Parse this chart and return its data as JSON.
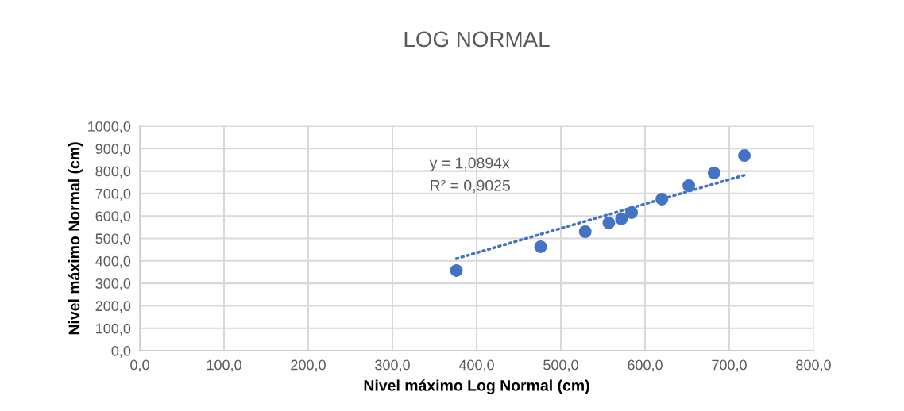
{
  "chart_data": {
    "type": "scatter",
    "title": "LOG NORMAL",
    "xlabel": "Nivel máximo Log Normal (cm)",
    "ylabel": "Nivel máximo Normal (cm)",
    "series": [
      {
        "color": "#4472c4",
        "x": [
          376,
          476,
          529,
          557,
          572,
          584,
          620,
          652,
          682,
          718
        ],
        "values": [
          357,
          463,
          530,
          569,
          587,
          615,
          675,
          735,
          792,
          869
        ],
        "marker": "circle"
      },
      {
        "type": "line",
        "color": "#4472c4",
        "x": [
          376,
          718
        ],
        "values": [
          410,
          782
        ],
        "line_style": "dotted",
        "marker": "none"
      }
    ],
    "annotations": [
      "y = 1,0894x",
      "R² = 0,9025"
    ],
    "xlim": [
      0,
      800
    ],
    "ylim": [
      0,
      1000
    ],
    "xticks": [
      {
        "value": 0,
        "label": "0,0"
      },
      {
        "value": 100,
        "label": "100,0"
      },
      {
        "value": 200,
        "label": "200,0"
      },
      {
        "value": 300,
        "label": "300,0"
      },
      {
        "value": 400,
        "label": "400,0"
      },
      {
        "value": 500,
        "label": "500,0"
      },
      {
        "value": 600,
        "label": "600,0"
      },
      {
        "value": 700,
        "label": "700,0"
      },
      {
        "value": 800,
        "label": "800,0"
      }
    ],
    "yticks": [
      {
        "value": 0,
        "label": "0,0"
      },
      {
        "value": 100,
        "label": "100,0"
      },
      {
        "value": 200,
        "label": "200,0"
      },
      {
        "value": 300,
        "label": "300,0"
      },
      {
        "value": 400,
        "label": "400,0"
      },
      {
        "value": 500,
        "label": "500,0"
      },
      {
        "value": 600,
        "label": "600,0"
      },
      {
        "value": 700,
        "label": "700,0"
      },
      {
        "value": 800,
        "label": "800,0"
      },
      {
        "value": 900,
        "label": "900,0"
      },
      {
        "value": 1000,
        "label": "1000,0"
      }
    ],
    "grid": true,
    "legend": false
  }
}
